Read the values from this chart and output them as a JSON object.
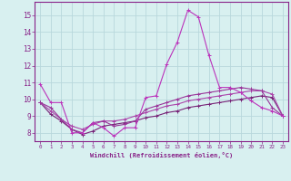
{
  "x": [
    0,
    1,
    2,
    3,
    4,
    5,
    6,
    7,
    8,
    9,
    10,
    11,
    12,
    13,
    14,
    15,
    16,
    17,
    18,
    19,
    20,
    21,
    22,
    23
  ],
  "line1": [
    10.9,
    9.8,
    9.8,
    8.0,
    8.0,
    8.6,
    8.3,
    7.8,
    8.3,
    8.3,
    10.1,
    10.2,
    12.1,
    13.4,
    15.3,
    14.9,
    12.6,
    10.7,
    10.7,
    10.4,
    9.9,
    9.5,
    9.3,
    9.0
  ],
  "line2": [
    9.8,
    9.5,
    8.8,
    8.2,
    8.0,
    8.6,
    8.7,
    8.4,
    8.5,
    8.7,
    9.4,
    9.6,
    9.8,
    10.0,
    10.2,
    10.3,
    10.4,
    10.5,
    10.6,
    10.7,
    10.6,
    10.5,
    9.5,
    9.0
  ],
  "line3": [
    9.8,
    9.3,
    8.8,
    8.4,
    8.2,
    8.5,
    8.7,
    8.7,
    8.8,
    9.0,
    9.2,
    9.4,
    9.6,
    9.7,
    9.9,
    10.0,
    10.1,
    10.2,
    10.3,
    10.4,
    10.5,
    10.5,
    10.3,
    9.0
  ],
  "line4": [
    9.8,
    9.1,
    8.7,
    8.2,
    7.9,
    8.1,
    8.4,
    8.5,
    8.6,
    8.7,
    8.9,
    9.0,
    9.2,
    9.3,
    9.5,
    9.6,
    9.7,
    9.8,
    9.9,
    10.0,
    10.1,
    10.2,
    10.1,
    9.0
  ],
  "line_color1": "#bb33bb",
  "line_color2": "#993399",
  "line_color3": "#aa44aa",
  "line_color4": "#772277",
  "bg_color": "#d8f0f0",
  "grid_color": "#b8d8dc",
  "axis_color": "#882288",
  "xlabel": "Windchill (Refroidissement éolien,°C)",
  "ylabel_ticks": [
    8,
    9,
    10,
    11,
    12,
    13,
    14,
    15
  ],
  "ylim": [
    7.5,
    15.8
  ],
  "xlim": [
    -0.5,
    23.5
  ]
}
